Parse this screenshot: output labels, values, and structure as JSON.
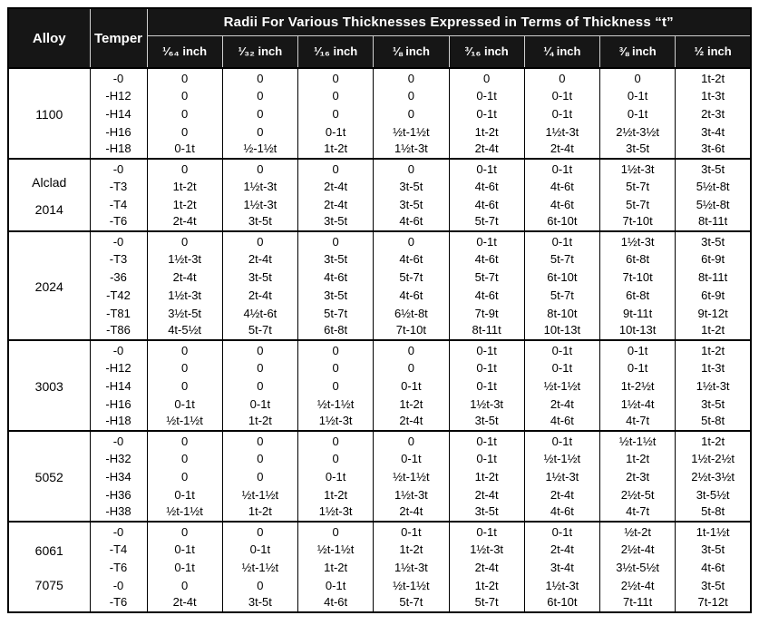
{
  "title": "Radii For Various Thicknesses Expressed in Terms of Thickness “t”",
  "columns": {
    "alloy": "Alloy",
    "temper": "Temper",
    "thicknesses": [
      "¹⁄₆₄ inch",
      "¹⁄₃₂ inch",
      "¹⁄₁₆ inch",
      "⅛ inch",
      "³⁄₁₆ inch",
      "¼ inch",
      "⅜ inch",
      "½ inch"
    ]
  },
  "chart_data": {
    "type": "table",
    "title": "Radii For Various Thicknesses Expressed in Terms of Thickness “t”",
    "columns": [
      "Alloy",
      "Temper",
      "1/64 inch",
      "1/32 inch",
      "1/16 inch",
      "1/8 inch",
      "3/16 inch",
      "1/4 inch",
      "3/8 inch",
      "1/2 inch"
    ]
  },
  "table": {
    "groups": [
      {
        "alloy": [
          "1100"
        ],
        "rows": [
          {
            "temper": "-0",
            "values": [
              "0",
              "0",
              "0",
              "0",
              "0",
              "0",
              "0",
              "1t-2t"
            ]
          },
          {
            "temper": "-H12",
            "values": [
              "0",
              "0",
              "0",
              "0",
              "0-1t",
              "0-1t",
              "0-1t",
              "1t-3t"
            ]
          },
          {
            "temper": "-H14",
            "values": [
              "0",
              "0",
              "0",
              "0",
              "0-1t",
              "0-1t",
              "0-1t",
              "2t-3t"
            ]
          },
          {
            "temper": "-H16",
            "values": [
              "0",
              "0",
              "0-1t",
              "½t-1½t",
              "1t-2t",
              "1½t-3t",
              "2½t-3½t",
              "3t-4t"
            ]
          },
          {
            "temper": "-H18",
            "values": [
              "0-1t",
              "½-1½t",
              "1t-2t",
              "1½t-3t",
              "2t-4t",
              "2t-4t",
              "3t-5t",
              "3t-6t"
            ]
          }
        ]
      },
      {
        "alloy": [
          "Alclad",
          "2014"
        ],
        "rows": [
          {
            "temper": "-0",
            "values": [
              "0",
              "0",
              "0",
              "0",
              "0-1t",
              "0-1t",
              "1½t-3t",
              "3t-5t"
            ]
          },
          {
            "temper": "-T3",
            "values": [
              "1t-2t",
              "1½t-3t",
              "2t-4t",
              "3t-5t",
              "4t-6t",
              "4t-6t",
              "5t-7t",
              "5½t-8t"
            ]
          },
          {
            "temper": "-T4",
            "values": [
              "1t-2t",
              "1½t-3t",
              "2t-4t",
              "3t-5t",
              "4t-6t",
              "4t-6t",
              "5t-7t",
              "5½t-8t"
            ]
          },
          {
            "temper": "-T6",
            "values": [
              "2t-4t",
              "3t-5t",
              "3t-5t",
              "4t-6t",
              "5t-7t",
              "6t-10t",
              "7t-10t",
              "8t-11t"
            ]
          }
        ]
      },
      {
        "alloy": [
          "2024"
        ],
        "rows": [
          {
            "temper": "-0",
            "values": [
              "0",
              "0",
              "0",
              "0",
              "0-1t",
              "0-1t",
              "1½t-3t",
              "3t-5t"
            ]
          },
          {
            "temper": "-T3",
            "values": [
              "1½t-3t",
              "2t-4t",
              "3t-5t",
              "4t-6t",
              "4t-6t",
              "5t-7t",
              "6t-8t",
              "6t-9t"
            ]
          },
          {
            "temper": "-36",
            "values": [
              "2t-4t",
              "3t-5t",
              "4t-6t",
              "5t-7t",
              "5t-7t",
              "6t-10t",
              "7t-10t",
              "8t-11t"
            ]
          },
          {
            "temper": "-T42",
            "values": [
              "1½t-3t",
              "2t-4t",
              "3t-5t",
              "4t-6t",
              "4t-6t",
              "5t-7t",
              "6t-8t",
              "6t-9t"
            ]
          },
          {
            "temper": "-T81",
            "values": [
              "3½t-5t",
              "4½t-6t",
              "5t-7t",
              "6½t-8t",
              "7t-9t",
              "8t-10t",
              "9t-11t",
              "9t-12t"
            ]
          },
          {
            "temper": "-T86",
            "values": [
              "4t-5½t",
              "5t-7t",
              "6t-8t",
              "7t-10t",
              "8t-11t",
              "10t-13t",
              "10t-13t",
              "1t-2t"
            ]
          }
        ]
      },
      {
        "alloy": [
          "3003"
        ],
        "rows": [
          {
            "temper": "-0",
            "values": [
              "0",
              "0",
              "0",
              "0",
              "0-1t",
              "0-1t",
              "0-1t",
              "1t-2t"
            ]
          },
          {
            "temper": "-H12",
            "values": [
              "0",
              "0",
              "0",
              "0",
              "0-1t",
              "0-1t",
              "0-1t",
              "1t-3t"
            ]
          },
          {
            "temper": "-H14",
            "values": [
              "0",
              "0",
              "0",
              "0-1t",
              "0-1t",
              "½t-1½t",
              "1t-2½t",
              "1½t-3t"
            ]
          },
          {
            "temper": "-H16",
            "values": [
              "0-1t",
              "0-1t",
              "½t-1½t",
              "1t-2t",
              "1½t-3t",
              "2t-4t",
              "1½t-4t",
              "3t-5t"
            ]
          },
          {
            "temper": "-H18",
            "values": [
              "½t-1½t",
              "1t-2t",
              "1½t-3t",
              "2t-4t",
              "3t-5t",
              "4t-6t",
              "4t-7t",
              "5t-8t"
            ]
          }
        ]
      },
      {
        "alloy": [
          "5052"
        ],
        "rows": [
          {
            "temper": "-0",
            "values": [
              "0",
              "0",
              "0",
              "0",
              "0-1t",
              "0-1t",
              "½t-1½t",
              "1t-2t"
            ]
          },
          {
            "temper": "-H32",
            "values": [
              "0",
              "0",
              "0",
              "0-1t",
              "0-1t",
              "½t-1½t",
              "1t-2t",
              "1½t-2½t"
            ]
          },
          {
            "temper": "-H34",
            "values": [
              "0",
              "0",
              "0-1t",
              "½t-1½t",
              "1t-2t",
              "1½t-3t",
              "2t-3t",
              "2½t-3½t"
            ]
          },
          {
            "temper": "-H36",
            "values": [
              "0-1t",
              "½t-1½t",
              "1t-2t",
              "1½t-3t",
              "2t-4t",
              "2t-4t",
              "2½t-5t",
              "3t-5½t"
            ]
          },
          {
            "temper": "-H38",
            "values": [
              "½t-1½t",
              "1t-2t",
              "1½t-3t",
              "2t-4t",
              "3t-5t",
              "4t-6t",
              "4t-7t",
              "5t-8t"
            ]
          }
        ]
      },
      {
        "alloy": [
          "6061",
          "7075"
        ],
        "rows": [
          {
            "temper": "-0",
            "values": [
              "0",
              "0",
              "0",
              "0-1t",
              "0-1t",
              "0-1t",
              "½t-2t",
              "1t-1½t"
            ]
          },
          {
            "temper": "-T4",
            "values": [
              "0-1t",
              "0-1t",
              "½t-1½t",
              "1t-2t",
              "1½t-3t",
              "2t-4t",
              "2½t-4t",
              "3t-5t"
            ]
          },
          {
            "temper": "-T6",
            "values": [
              "0-1t",
              "½t-1½t",
              "1t-2t",
              "1½t-3t",
              "2t-4t",
              "3t-4t",
              "3½t-5½t",
              "4t-6t"
            ]
          },
          {
            "temper": "-0",
            "values": [
              "0",
              "0",
              "0-1t",
              "½t-1½t",
              "1t-2t",
              "1½t-3t",
              "2½t-4t",
              "3t-5t"
            ]
          },
          {
            "temper": "-T6",
            "values": [
              "2t-4t",
              "3t-5t",
              "4t-6t",
              "5t-7t",
              "5t-7t",
              "6t-10t",
              "7t-11t",
              "7t-12t"
            ]
          }
        ]
      }
    ]
  }
}
